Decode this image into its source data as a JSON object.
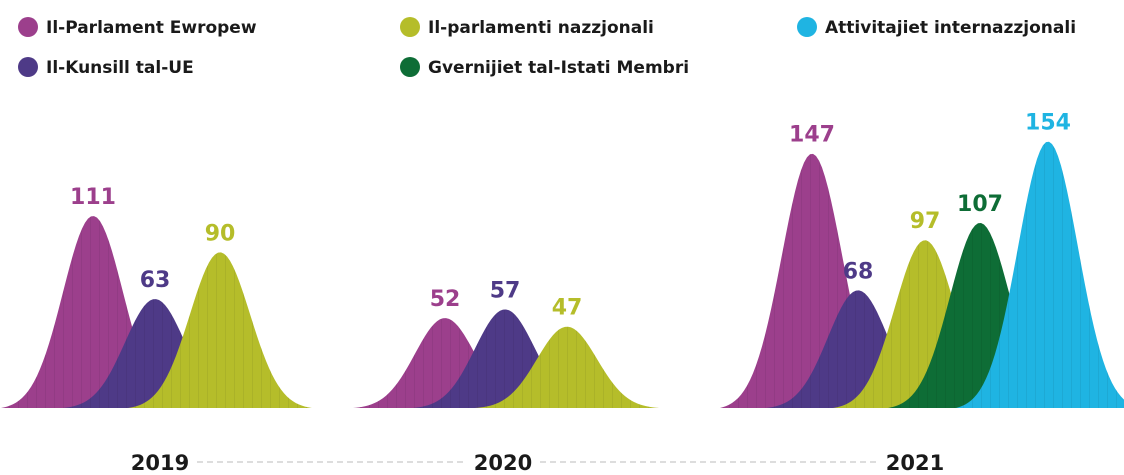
{
  "chart_data": {
    "type": "peak",
    "categories": [
      "2019",
      "2020",
      "2021"
    ],
    "series": [
      {
        "name": "Il-Parlament Ewropew",
        "color": "#9c3f8c",
        "values": [
          111,
          52,
          147
        ]
      },
      {
        "name": "Il-Kunsill tal-UE",
        "color": "#4e3a87",
        "values": [
          63,
          57,
          68
        ]
      },
      {
        "name": "Il-parlamenti nazzjonali",
        "color": "#b5bd2a",
        "values": [
          90,
          47,
          97
        ]
      },
      {
        "name": "Gvernijiet tal-Istati Membri",
        "color": "#0e6d36",
        "values": [
          null,
          null,
          107
        ]
      },
      {
        "name": "Attivitajiet internazzjonali",
        "color": "#1fb4e2",
        "values": [
          null,
          null,
          154
        ]
      }
    ]
  }
}
